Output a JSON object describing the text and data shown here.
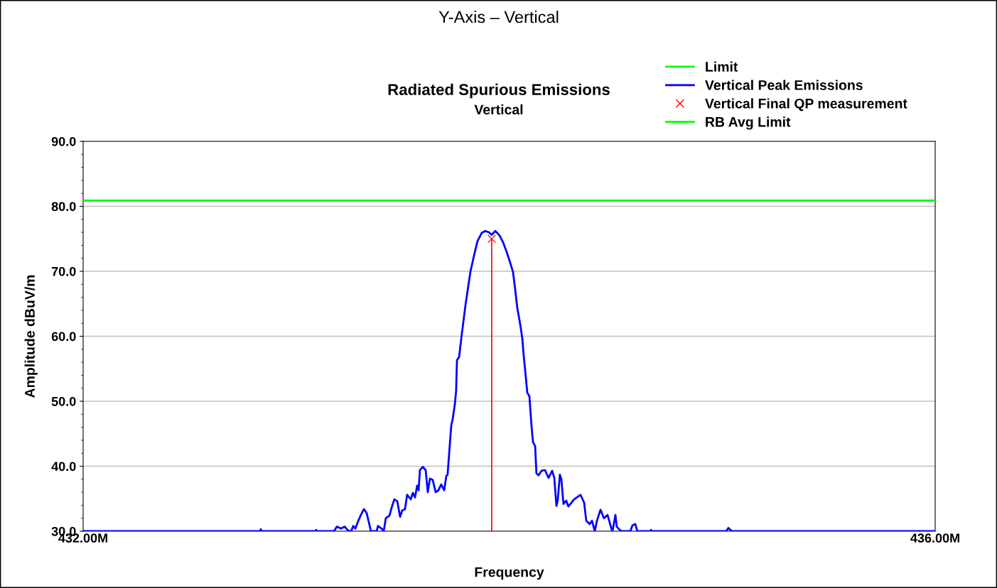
{
  "chart_data": {
    "type": "line",
    "title": "Radiated Spurious Emissions",
    "subtitle": "Vertical",
    "xlabel": "Frequency",
    "ylabel": "Amplitude dBuV/m",
    "annotations": [
      "Y-Axis – Vertical"
    ],
    "xlim": [
      432,
      436
    ],
    "xticks": [
      {
        "value": 432,
        "label": "432.00M"
      },
      {
        "value": 436,
        "label": "436.00M"
      }
    ],
    "ylim": [
      30,
      90
    ],
    "yticks": [
      {
        "value": 30,
        "label": "30.0"
      },
      {
        "value": 40,
        "label": "40.0"
      },
      {
        "value": 50,
        "label": "50.0"
      },
      {
        "value": 60,
        "label": "60.0"
      },
      {
        "value": 70,
        "label": "70.0"
      },
      {
        "value": 80,
        "label": "80.0"
      },
      {
        "value": 90,
        "label": "90.0"
      }
    ],
    "grid": "y",
    "legend": "top right",
    "series": [
      {
        "name": "Limit",
        "color": "#00ff00",
        "x": [
          432,
          436
        ],
        "values": [
          80.9,
          80.9
        ]
      },
      {
        "name": "Vertical Peak Emissions",
        "color": "#0000ff",
        "x": [
          432.0,
          432.831,
          432.834,
          432.837,
          433.091,
          433.094,
          433.097,
          433.178,
          433.191,
          433.211,
          433.228,
          433.244,
          433.258,
          433.268,
          433.278,
          433.288,
          433.301,
          433.318,
          433.331,
          433.341,
          433.351,
          433.378,
          433.384,
          433.401,
          433.411,
          433.421,
          433.438,
          433.448,
          433.461,
          433.475,
          433.488,
          433.498,
          433.511,
          433.521,
          433.538,
          433.548,
          433.558,
          433.568,
          433.575,
          433.581,
          433.595,
          433.608,
          433.618,
          433.628,
          433.641,
          433.655,
          433.668,
          433.681,
          433.695,
          433.705,
          433.711,
          433.718,
          433.728,
          433.735,
          433.745,
          433.751,
          433.755,
          433.765,
          433.775,
          433.785,
          433.795,
          433.808,
          433.818,
          433.835,
          433.851,
          433.871,
          433.888,
          433.905,
          433.918,
          433.935,
          433.955,
          433.972,
          433.988,
          434.005,
          434.018,
          434.028,
          434.038,
          434.052,
          434.062,
          434.068,
          434.078,
          434.085,
          434.095,
          434.105,
          434.112,
          434.122,
          434.128,
          434.138,
          434.152,
          434.168,
          434.185,
          434.202,
          434.212,
          434.222,
          434.228,
          434.238,
          434.245,
          434.255,
          434.268,
          434.278,
          434.305,
          434.335,
          434.352,
          434.362,
          434.378,
          434.389,
          434.402,
          434.412,
          434.429,
          434.445,
          434.462,
          434.479,
          434.485,
          434.499,
          434.505,
          434.522,
          434.535,
          434.569,
          434.579,
          434.592,
          434.602,
          434.662,
          434.666,
          434.669,
          435.019,
          435.029,
          435.046,
          436.0
        ],
        "values": [
          30.0,
          30.0,
          30.3,
          30.0,
          30.0,
          30.2,
          30.0,
          30.0,
          30.7,
          30.4,
          30.7,
          30.1,
          30.0,
          30.8,
          30.4,
          31.3,
          32.3,
          33.4,
          32.8,
          31.4,
          30.0,
          30.0,
          30.8,
          30.4,
          30.0,
          32.0,
          32.4,
          33.6,
          34.9,
          34.6,
          32.2,
          33.2,
          33.4,
          35.6,
          34.9,
          35.9,
          35.2,
          37.0,
          36.3,
          39.4,
          39.9,
          39.4,
          36.0,
          38.1,
          37.9,
          36.0,
          36.3,
          37.2,
          36.3,
          38.5,
          38.7,
          41.8,
          46.2,
          47.3,
          49.5,
          51.6,
          56.3,
          56.8,
          59.6,
          62.2,
          64.8,
          67.7,
          69.9,
          72.4,
          74.6,
          75.9,
          76.2,
          76.0,
          75.6,
          76.2,
          75.5,
          74.4,
          73.0,
          71.3,
          69.9,
          67.3,
          64.4,
          61.8,
          59.6,
          57.1,
          53.8,
          51.3,
          50.8,
          46.2,
          43.7,
          43.1,
          38.9,
          38.6,
          39.3,
          39.4,
          38.2,
          39.3,
          38.2,
          33.9,
          34.7,
          38.7,
          38.0,
          34.2,
          34.7,
          33.8,
          34.9,
          35.6,
          34.4,
          31.6,
          31.1,
          31.6,
          30.0,
          31.6,
          33.3,
          32.0,
          32.5,
          30.5,
          30.0,
          32.5,
          30.7,
          30.1,
          30.0,
          30.0,
          30.9,
          31.1,
          30.0,
          30.0,
          30.2,
          30.0,
          30.0,
          30.5,
          30.0,
          30.0
        ]
      },
      {
        "name": "Vertical Final QP measurement",
        "type": "lollipop",
        "color": "#ff0000",
        "marker": "cross",
        "x": [
          433.918
        ],
        "values": [
          75.0
        ]
      },
      {
        "name": "RB Avg Limit",
        "color": "#00ff00",
        "x": [
          432,
          436
        ],
        "values": [
          80.9,
          80.9
        ]
      }
    ]
  }
}
